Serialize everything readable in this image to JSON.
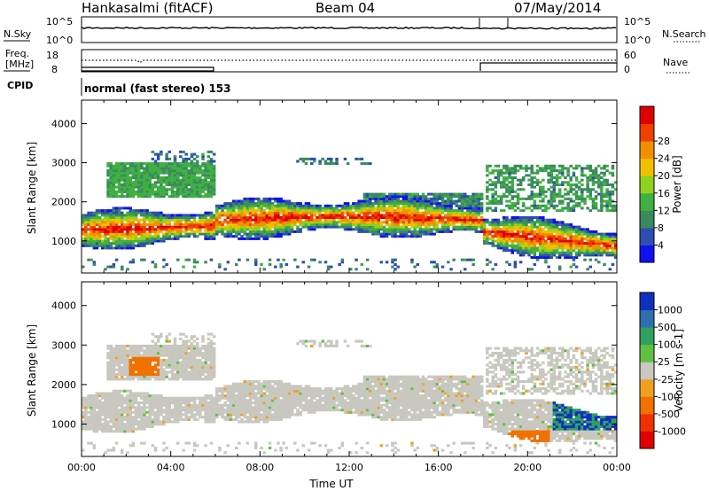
{
  "header": {
    "station": "Hankasalmi (fitACF)",
    "beam": "Beam 04",
    "date": "07/May/2014"
  },
  "status_panels": {
    "nsky_label": "N.Sky",
    "nsearch_label": "N.Search",
    "nsky_ticks": [
      "10^5",
      "10^0"
    ],
    "nsearch_ticks": [
      "10^5",
      "10^0"
    ],
    "freq_label_1": "Freq.",
    "freq_label_2": "[MHz]",
    "freq_ticks": [
      "18",
      "8"
    ],
    "nave_label": "Nave",
    "nave_ticks": [
      "60",
      "0"
    ],
    "cpid_label": "CPID",
    "cpid_text": "normal (fast stereo) 153"
  },
  "chart_data": [
    {
      "type": "heatmap",
      "title": "",
      "xlabel": "",
      "ylabel": "Slant Range [km]",
      "xlim": [
        0,
        24
      ],
      "ylim": [
        180,
        4600
      ],
      "yticks": [
        1000,
        2000,
        3000,
        4000
      ],
      "colorbar": {
        "label": "Power [dB]",
        "ticks": [
          "4",
          "8",
          "12",
          "16",
          "20",
          "24",
          "28"
        ],
        "colors": [
          "#1010f0",
          "#2e4fb0",
          "#3a8a60",
          "#40b040",
          "#90d020",
          "#f0c000",
          "#f09000",
          "#f04000",
          "#e00000"
        ]
      }
    },
    {
      "type": "heatmap",
      "title": "",
      "xlabel": "Time UT",
      "ylabel": "Slant Range [km]",
      "xlim": [
        0,
        24
      ],
      "ylim": [
        180,
        4600
      ],
      "xticks": [
        "00:00",
        "04:00",
        "08:00",
        "12:00",
        "16:00",
        "20:00",
        "00:00"
      ],
      "yticks": [
        1000,
        2000,
        3000,
        4000
      ],
      "colorbar": {
        "label": "Velocity [m s-1]",
        "ticks": [
          "1000",
          "500",
          "100",
          "25",
          "-25",
          "-100",
          "-500",
          "-1000"
        ],
        "colors": [
          "#1030c0",
          "#2e6fb0",
          "#30a060",
          "#60c040",
          "#c8c8c0",
          "#f0a020",
          "#f07000",
          "#f03000",
          "#e00000"
        ]
      }
    }
  ]
}
